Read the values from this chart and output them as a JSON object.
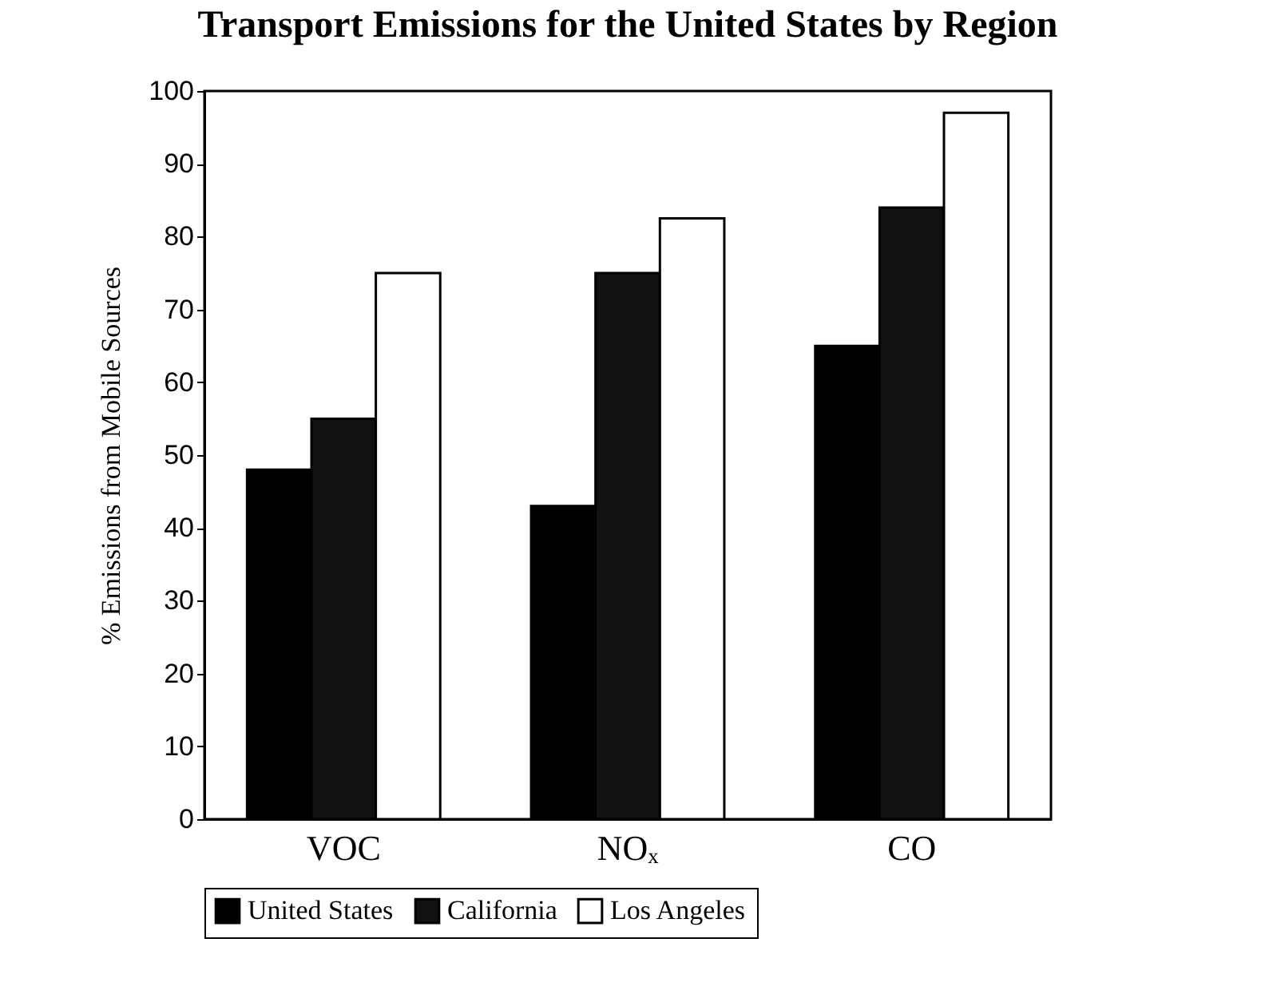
{
  "chart_data": {
    "type": "bar",
    "title": "Transport Emissions for the United States by Region",
    "ylabel": "% Emissions from Mobile Sources",
    "categories": [
      "VOC",
      "NOₓ",
      "CO"
    ],
    "series": [
      {
        "name": "United States",
        "color": "#000000",
        "values": [
          48,
          43,
          65
        ]
      },
      {
        "name": "California",
        "color": "#111111",
        "values": [
          55,
          75,
          84
        ]
      },
      {
        "name": "Los Angeles",
        "color": "#ffffff",
        "values": [
          75,
          82.5,
          97
        ]
      }
    ],
    "ylim": [
      0,
      100
    ],
    "yticks": [
      0,
      10,
      20,
      30,
      40,
      50,
      60,
      70,
      80,
      90,
      100
    ],
    "grid": false,
    "legend": "bottom"
  }
}
